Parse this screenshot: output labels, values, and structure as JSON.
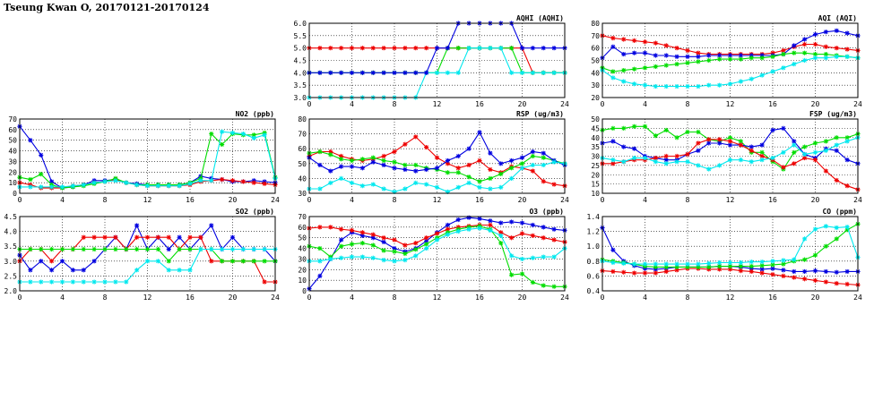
{
  "title": "Tseung Kwan O, 20170121-20170124",
  "colors": {
    "blue": "#0000e0",
    "red": "#ee0000",
    "green": "#00dd00",
    "cyan": "#00e8ee"
  },
  "chart_data": [
    {
      "id": "aqhi",
      "type": "line",
      "title": "AQHI (AQHI)",
      "xlim": [
        0,
        24
      ],
      "xticks": [
        0,
        4,
        8,
        12,
        16,
        20,
        24
      ],
      "ylim": [
        3.0,
        6.0
      ],
      "yticks": [
        "3.0",
        "3.5",
        "4.0",
        "4.5",
        "5.0",
        "5.5",
        "6.0"
      ],
      "grid": true,
      "series": [
        {
          "color": "red",
          "values": [
            5,
            5,
            5,
            5,
            5,
            5,
            5,
            5,
            5,
            5,
            5,
            5,
            5,
            5,
            5,
            5,
            5,
            5,
            5,
            5,
            5,
            4,
            4,
            4,
            4
          ]
        },
        {
          "color": "green",
          "values": [
            4,
            4,
            4,
            4,
            4,
            4,
            4,
            4,
            4,
            4,
            4,
            4,
            4,
            5,
            5,
            5,
            5,
            5,
            5,
            5,
            4,
            4,
            4,
            4,
            4
          ]
        },
        {
          "color": "cyan",
          "values": [
            3,
            3,
            3,
            3,
            3,
            3,
            3,
            3,
            3,
            3,
            3,
            4,
            4,
            4,
            4,
            5,
            5,
            5,
            5,
            4,
            4,
            4,
            4,
            4,
            4
          ]
        },
        {
          "color": "blue",
          "values": [
            4,
            4,
            4,
            4,
            4,
            4,
            4,
            4,
            4,
            4,
            4,
            4,
            5,
            5,
            6,
            6,
            6,
            6,
            6,
            6,
            5,
            5,
            5,
            5,
            5
          ]
        }
      ]
    },
    {
      "id": "aqi",
      "type": "line",
      "title": "AQI (AQI)",
      "xlim": [
        0,
        24
      ],
      "xticks": [
        0,
        4,
        8,
        12,
        16,
        20,
        24
      ],
      "ylim": [
        20,
        80
      ],
      "yticks": [
        "20",
        "30",
        "40",
        "50",
        "60",
        "70",
        "80"
      ],
      "grid": true,
      "series": [
        {
          "color": "red",
          "values": [
            70,
            68,
            67,
            66,
            65,
            64,
            62,
            60,
            58,
            56,
            55,
            55,
            55,
            55,
            55,
            55,
            56,
            58,
            61,
            63,
            63,
            61,
            60,
            59,
            58
          ]
        },
        {
          "color": "blue",
          "values": [
            52,
            61,
            55,
            56,
            56,
            54,
            54,
            53,
            53,
            53,
            54,
            54,
            54,
            54,
            54,
            54,
            54,
            55,
            62,
            67,
            71,
            73,
            74,
            72,
            70
          ]
        },
        {
          "color": "green",
          "values": [
            44,
            41,
            42,
            43,
            44,
            45,
            46,
            47,
            48,
            49,
            50,
            51,
            51,
            51,
            52,
            52,
            53,
            55,
            56,
            56,
            55,
            55,
            54,
            53,
            52
          ]
        },
        {
          "color": "cyan",
          "values": [
            42,
            36,
            33,
            31,
            30,
            29,
            29,
            29,
            29,
            29,
            30,
            30,
            31,
            33,
            35,
            38,
            41,
            44,
            47,
            50,
            52,
            52,
            53,
            53,
            52
          ]
        }
      ]
    },
    {
      "id": "no2",
      "type": "line",
      "title": "NO2 (ppb)",
      "xlim": [
        0,
        24
      ],
      "xticks": [
        0,
        4,
        8,
        12,
        16,
        20,
        24
      ],
      "ylim": [
        0,
        70
      ],
      "yticks": [
        "0",
        "10",
        "20",
        "30",
        "40",
        "50",
        "60",
        "70"
      ],
      "grid": true,
      "series": [
        {
          "color": "blue",
          "values": [
            63,
            50,
            36,
            11,
            5,
            6,
            8,
            12,
            12,
            13,
            10,
            9,
            8,
            8,
            8,
            8,
            10,
            16,
            14,
            13,
            11,
            11,
            12,
            11,
            10
          ]
        },
        {
          "color": "red",
          "values": [
            10,
            8,
            5,
            5,
            5,
            7,
            8,
            10,
            11,
            13,
            10,
            8,
            7,
            7,
            7,
            7,
            8,
            11,
            12,
            13,
            12,
            11,
            10,
            9,
            8
          ]
        },
        {
          "color": "green",
          "values": [
            15,
            13,
            18,
            8,
            5,
            6,
            7,
            9,
            11,
            14,
            10,
            8,
            8,
            8,
            8,
            8,
            10,
            14,
            56,
            46,
            56,
            55,
            55,
            57,
            15
          ]
        },
        {
          "color": "cyan",
          "values": [
            6,
            6,
            6,
            6,
            6,
            7,
            8,
            10,
            11,
            12,
            10,
            8,
            7,
            7,
            7,
            7,
            9,
            12,
            12,
            58,
            57,
            56,
            52,
            55,
            14
          ]
        }
      ]
    },
    {
      "id": "rsp",
      "type": "line",
      "title": "RSP (ug/m3)",
      "xlim": [
        0,
        24
      ],
      "xticks": [
        0,
        4,
        8,
        12,
        16,
        20,
        24
      ],
      "ylim": [
        30,
        80
      ],
      "yticks": [
        "30",
        "40",
        "50",
        "60",
        "70",
        "80"
      ],
      "grid": true,
      "series": [
        {
          "color": "red",
          "values": [
            55,
            58,
            58,
            55,
            53,
            52,
            53,
            55,
            58,
            63,
            68,
            61,
            54,
            50,
            47,
            49,
            52,
            46,
            44,
            48,
            47,
            45,
            38,
            36,
            35
          ]
        },
        {
          "color": "green",
          "values": [
            57,
            58,
            56,
            53,
            52,
            53,
            54,
            52,
            51,
            49,
            49,
            47,
            46,
            44,
            44,
            41,
            38,
            40,
            43,
            47,
            50,
            55,
            54,
            52,
            50
          ]
        },
        {
          "color": "blue",
          "values": [
            54,
            49,
            45,
            48,
            48,
            47,
            51,
            49,
            47,
            46,
            45,
            46,
            47,
            52,
            55,
            60,
            71,
            57,
            50,
            52,
            54,
            58,
            57,
            52,
            49
          ]
        },
        {
          "color": "cyan",
          "values": [
            33,
            33,
            37,
            40,
            37,
            35,
            36,
            33,
            31,
            33,
            37,
            36,
            34,
            31,
            34,
            37,
            34,
            33,
            34,
            40,
            47,
            49,
            49,
            51,
            50
          ]
        }
      ]
    },
    {
      "id": "fsp",
      "type": "line",
      "title": "FSP (ug/m3)",
      "xlim": [
        0,
        24
      ],
      "xticks": [
        0,
        4,
        8,
        12,
        16,
        20,
        24
      ],
      "ylim": [
        10,
        50
      ],
      "yticks": [
        "10",
        "15",
        "20",
        "25",
        "30",
        "35",
        "40",
        "45",
        "50"
      ],
      "grid": true,
      "series": [
        {
          "color": "green",
          "values": [
            44,
            45,
            45,
            46,
            46,
            41,
            44,
            40,
            43,
            43,
            39,
            38,
            40,
            38,
            32,
            32,
            27,
            23,
            32,
            35,
            37,
            38,
            40,
            40,
            42
          ]
        },
        {
          "color": "blue",
          "values": [
            37,
            38,
            35,
            34,
            30,
            29,
            28,
            28,
            31,
            33,
            37,
            37,
            36,
            36,
            35,
            36,
            44,
            45,
            38,
            31,
            29,
            34,
            33,
            28,
            26
          ]
        },
        {
          "color": "red",
          "values": [
            26,
            26,
            27,
            28,
            28,
            29,
            30,
            30,
            31,
            37,
            39,
            39,
            38,
            36,
            33,
            30,
            28,
            24,
            26,
            29,
            28,
            22,
            17,
            14,
            12
          ]
        },
        {
          "color": "cyan",
          "values": [
            29,
            28,
            27,
            29,
            29,
            27,
            26,
            27,
            27,
            25,
            23,
            25,
            28,
            28,
            27,
            28,
            29,
            32,
            36,
            31,
            32,
            33,
            36,
            38,
            40
          ]
        }
      ]
    },
    {
      "id": "so2",
      "type": "line",
      "title": "SO2 (ppb)",
      "xlim": [
        0,
        24
      ],
      "xticks": [
        0,
        4,
        8,
        12,
        16,
        20,
        24
      ],
      "ylim": [
        2.0,
        4.5
      ],
      "yticks": [
        "2.0",
        "2.5",
        "3.0",
        "3.5",
        "4.0",
        "4.5"
      ],
      "grid": true,
      "series": [
        {
          "color": "blue",
          "values": [
            3.2,
            2.7,
            3.0,
            2.7,
            3.0,
            2.7,
            2.7,
            3.0,
            3.4,
            3.8,
            3.4,
            4.2,
            3.4,
            3.8,
            3.4,
            3.8,
            3.4,
            3.8,
            4.2,
            3.4,
            3.8,
            3.4,
            3.4,
            3.4,
            3.0
          ]
        },
        {
          "color": "red",
          "values": [
            3.0,
            3.4,
            3.4,
            3.0,
            3.4,
            3.4,
            3.8,
            3.8,
            3.8,
            3.8,
            3.4,
            3.8,
            3.8,
            3.8,
            3.8,
            3.4,
            3.8,
            3.8,
            3.0,
            3.0,
            3.0,
            3.0,
            3.0,
            2.3,
            2.3
          ]
        },
        {
          "color": "green",
          "values": [
            3.4,
            3.4,
            3.4,
            3.4,
            3.4,
            3.4,
            3.4,
            3.4,
            3.4,
            3.4,
            3.4,
            3.4,
            3.4,
            3.4,
            3.0,
            3.4,
            3.4,
            3.4,
            3.4,
            3.0,
            3.0,
            3.0,
            3.0,
            3.0,
            3.0
          ]
        },
        {
          "color": "cyan",
          "values": [
            2.3,
            2.3,
            2.3,
            2.3,
            2.3,
            2.3,
            2.3,
            2.3,
            2.3,
            2.3,
            2.3,
            2.7,
            3.0,
            3.0,
            2.7,
            2.7,
            2.7,
            3.4,
            3.4,
            3.4,
            3.4,
            3.4,
            3.4,
            3.4,
            3.4
          ]
        }
      ]
    },
    {
      "id": "o3",
      "type": "line",
      "title": "O3 (ppb)",
      "xlim": [
        0,
        24
      ],
      "xticks": [
        0,
        4,
        8,
        12,
        16,
        20,
        24
      ],
      "ylim": [
        0,
        70
      ],
      "yticks": [
        "0",
        "10",
        "20",
        "30",
        "40",
        "50",
        "60",
        "70"
      ],
      "grid": true,
      "series": [
        {
          "color": "blue",
          "values": [
            2,
            14,
            30,
            48,
            55,
            52,
            50,
            46,
            40,
            37,
            40,
            47,
            55,
            62,
            67,
            69,
            68,
            66,
            64,
            65,
            64,
            62,
            60,
            58,
            57
          ]
        },
        {
          "color": "red",
          "values": [
            59,
            60,
            60,
            58,
            57,
            55,
            53,
            50,
            48,
            43,
            45,
            50,
            54,
            58,
            60,
            61,
            62,
            62,
            55,
            50,
            54,
            52,
            50,
            48,
            46
          ]
        },
        {
          "color": "green",
          "values": [
            42,
            40,
            32,
            42,
            44,
            45,
            43,
            38,
            37,
            35,
            39,
            44,
            50,
            55,
            58,
            60,
            61,
            58,
            45,
            15,
            16,
            8,
            5,
            4,
            4
          ]
        },
        {
          "color": "cyan",
          "values": [
            28,
            28,
            30,
            31,
            32,
            32,
            31,
            29,
            28,
            29,
            33,
            40,
            48,
            53,
            56,
            58,
            59,
            57,
            52,
            33,
            30,
            31,
            32,
            32,
            40
          ]
        }
      ]
    },
    {
      "id": "co",
      "type": "line",
      "title": "CO (ppm)",
      "xlim": [
        0,
        24
      ],
      "xticks": [
        0,
        4,
        8,
        12,
        16,
        20,
        24
      ],
      "ylim": [
        0.4,
        1.4
      ],
      "yticks": [
        "0.4",
        "0.6",
        "0.8",
        "1.0",
        "1.2",
        "1.4"
      ],
      "grid": true,
      "series": [
        {
          "color": "blue",
          "values": [
            1.25,
            0.95,
            0.8,
            0.74,
            0.7,
            0.69,
            0.7,
            0.72,
            0.72,
            0.72,
            0.72,
            0.73,
            0.73,
            0.72,
            0.7,
            0.69,
            0.7,
            0.68,
            0.66,
            0.66,
            0.67,
            0.66,
            0.65,
            0.66,
            0.66
          ]
        },
        {
          "color": "red",
          "values": [
            0.67,
            0.66,
            0.65,
            0.64,
            0.64,
            0.64,
            0.66,
            0.68,
            0.7,
            0.7,
            0.69,
            0.69,
            0.69,
            0.67,
            0.66,
            0.64,
            0.62,
            0.6,
            0.58,
            0.56,
            0.54,
            0.52,
            0.5,
            0.49,
            0.48
          ]
        },
        {
          "color": "green",
          "values": [
            0.82,
            0.8,
            0.78,
            0.76,
            0.73,
            0.72,
            0.72,
            0.72,
            0.72,
            0.72,
            0.72,
            0.73,
            0.73,
            0.73,
            0.73,
            0.74,
            0.75,
            0.76,
            0.8,
            0.82,
            0.88,
            1.0,
            1.1,
            1.22,
            1.3
          ]
        },
        {
          "color": "cyan",
          "values": [
            0.8,
            0.78,
            0.77,
            0.76,
            0.76,
            0.76,
            0.76,
            0.76,
            0.76,
            0.76,
            0.77,
            0.78,
            0.78,
            0.78,
            0.79,
            0.79,
            0.8,
            0.81,
            0.82,
            1.1,
            1.23,
            1.27,
            1.25,
            1.26,
            0.85
          ]
        }
      ]
    }
  ]
}
